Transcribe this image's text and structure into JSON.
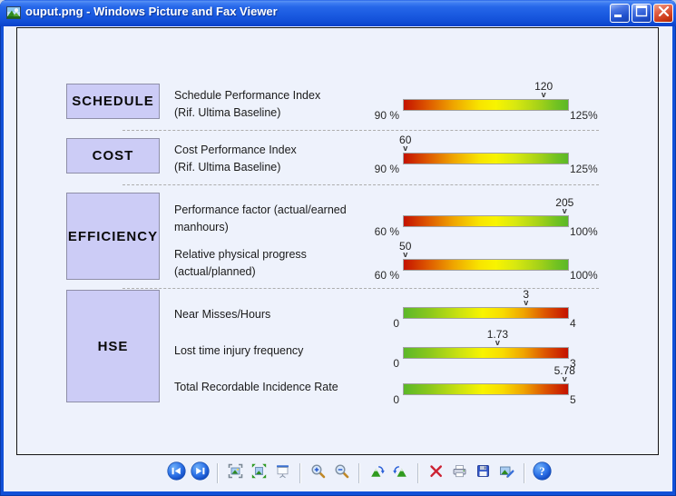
{
  "window": {
    "title": "ouput.png - Windows Picture and Fax Viewer",
    "controls": [
      {
        "name": "minimize",
        "glyph": "minimize-icon"
      },
      {
        "name": "maximize",
        "glyph": "maximize-icon"
      },
      {
        "name": "close",
        "glyph": "close-icon"
      }
    ]
  },
  "dashboard": {
    "marker_glyph": "v",
    "sections": [
      {
        "label": "SCHEDULE",
        "items": [
          {
            "desc": [
              "Schedule Performance Index",
              "(Rif. Ultima Baseline)"
            ],
            "gauge": {
              "value": 120,
              "value_label": "120",
              "min": 90,
              "max": 125,
              "min_label": "90 %",
              "max_label": "125%",
              "gradient": "red-to-green"
            }
          }
        ]
      },
      {
        "label": "COST",
        "items": [
          {
            "desc": [
              "Cost Performance Index",
              "(Rif. Ultima Baseline)"
            ],
            "gauge": {
              "value": 60,
              "value_label": "60",
              "min": 90,
              "max": 125,
              "min_label": "90 %",
              "max_label": "125%",
              "gradient": "red-to-green"
            }
          }
        ]
      },
      {
        "label": "EFFICIENCY",
        "items": [
          {
            "desc": [
              "Performance factor (actual/earned",
              "manhours)"
            ],
            "gauge": {
              "value": 205,
              "value_label": "205",
              "min": 60,
              "max": 100,
              "min_label": "60 %",
              "max_label": "100%",
              "gradient": "red-to-green"
            }
          },
          {
            "desc": [
              "Relative physical progress",
              "(actual/planned)"
            ],
            "gauge": {
              "value": 50,
              "value_label": "50",
              "min": 60,
              "max": 100,
              "min_label": "60 %",
              "max_label": "100%",
              "gradient": "red-to-green"
            }
          }
        ]
      },
      {
        "label": "HSE",
        "items": [
          {
            "desc": [
              "Near Misses/Hours"
            ],
            "gauge": {
              "value": 3,
              "value_label": "3",
              "min": 0,
              "max": 4,
              "min_label": "0",
              "max_label": "4",
              "gradient": "green-to-red"
            }
          },
          {
            "desc": [
              "Lost time injury frequency"
            ],
            "gauge": {
              "value": 1.73,
              "value_label": "1.73",
              "min": 0,
              "max": 3,
              "min_label": "0",
              "max_label": "3",
              "gradient": "green-to-red"
            }
          },
          {
            "desc": [
              "Total Recordable Incidence Rate"
            ],
            "gauge": {
              "value": 5.78,
              "value_label": "5.78",
              "min": 0,
              "max": 5,
              "min_label": "0",
              "max_label": "5",
              "gradient": "green-to-red"
            }
          }
        ]
      }
    ]
  },
  "toolbar": {
    "items": [
      {
        "type": "button",
        "name": "previous-image",
        "icon": "previous-icon"
      },
      {
        "type": "button",
        "name": "next-image",
        "icon": "next-icon"
      },
      {
        "type": "separator"
      },
      {
        "type": "button",
        "name": "best-fit",
        "icon": "best-fit-icon"
      },
      {
        "type": "button",
        "name": "actual-size",
        "icon": "actual-size-icon"
      },
      {
        "type": "button",
        "name": "start-slideshow",
        "icon": "slideshow-icon"
      },
      {
        "type": "separator"
      },
      {
        "type": "button",
        "name": "zoom-in",
        "icon": "zoom-in-icon"
      },
      {
        "type": "button",
        "name": "zoom-out",
        "icon": "zoom-out-icon"
      },
      {
        "type": "separator"
      },
      {
        "type": "button",
        "name": "rotate-clockwise",
        "icon": "rotate-clockwise-icon"
      },
      {
        "type": "button",
        "name": "rotate-counterclockwise",
        "icon": "rotate-counterclockwise-icon"
      },
      {
        "type": "separator"
      },
      {
        "type": "button",
        "name": "delete",
        "icon": "delete-icon"
      },
      {
        "type": "button",
        "name": "print",
        "icon": "print-icon"
      },
      {
        "type": "button",
        "name": "save",
        "icon": "save-icon"
      },
      {
        "type": "button",
        "name": "edit",
        "icon": "edit-icon"
      },
      {
        "type": "separator"
      },
      {
        "type": "button",
        "name": "help",
        "icon": "help-icon"
      }
    ]
  },
  "colors": {
    "window_chrome": "#1150d8",
    "titlebar_top": "#5a93f4",
    "titlebar_bottom": "#0a40c8",
    "client_bg": "#edf1fb",
    "kpi_box_fill": "#ccccf6",
    "kpi_box_border": "#8f8fa8",
    "gauge_red": "#c41200",
    "gauge_yellow": "#f8f400",
    "gauge_green": "#5cb828",
    "close_button_red": "#cc3a18"
  }
}
